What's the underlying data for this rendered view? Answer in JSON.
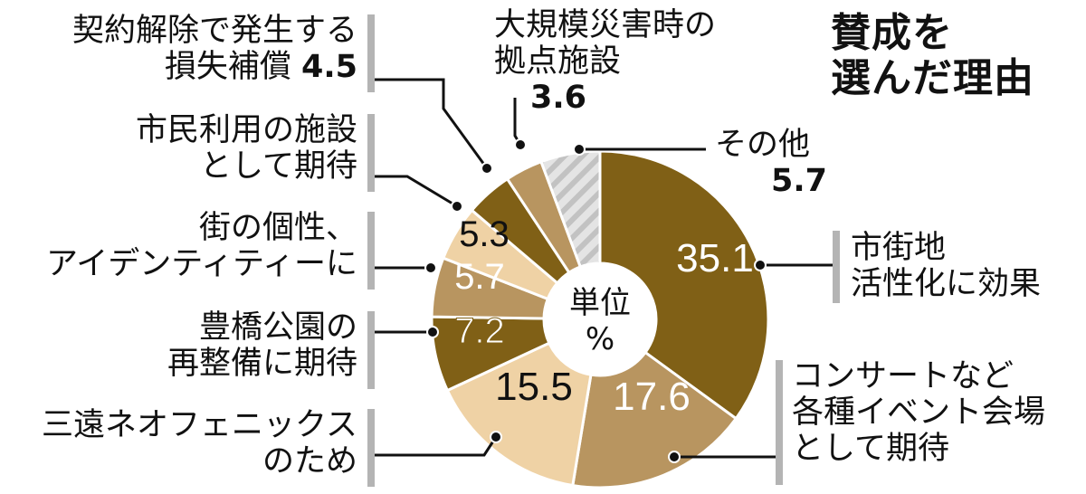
{
  "chart_data": {
    "type": "pie",
    "subtype": "donut",
    "title": "賛成を選んだ理由",
    "unit_label": "単位 %",
    "start_angle": "12 o'clock, clockwise",
    "categories": [
      "市街地活性化に効果",
      "コンサートなど各種イベント会場として期待",
      "三遠ネオフェニックスのため",
      "豊橋公園の再整備に期待",
      "街の個性、アイデンティティーに",
      "市民利用の施設として期待",
      "契約解除で発生する損失補償",
      "大規模災害時の拠点施設",
      "その他"
    ],
    "values": [
      35.1,
      17.6,
      15.5,
      7.2,
      5.7,
      5.3,
      4.5,
      3.6,
      5.7
    ],
    "colors": [
      "#806016",
      "#b89560",
      "#efd2a5",
      "#806016",
      "#b89560",
      "#efd2a5",
      "#806016",
      "#b89560",
      "hatched-gray"
    ]
  },
  "title": {
    "line1": "賛成を",
    "line2": "選んだ理由"
  },
  "center": {
    "line1": "単位",
    "line2": "%"
  },
  "labels": {
    "shigaichi": {
      "line1": "市街地",
      "line2": "活性化に効果"
    },
    "concert": {
      "line1": "コンサートなど",
      "line2": "各種イベント会場",
      "line3": "として期待"
    },
    "neophoenix": {
      "line1": "三遠ネオフェニックス",
      "line2": "のため"
    },
    "park": {
      "line1": "豊橋公園の",
      "line2": "再整備に期待"
    },
    "identity": {
      "line1": "街の個性、",
      "line2": "アイデンティティーに"
    },
    "shimin": {
      "line1": "市民利用の施設",
      "line2": "として期待"
    },
    "keiyaku": {
      "line1": "契約解除で発生する",
      "line2": "損失補償",
      "value": "4.5"
    },
    "saigai": {
      "line1": "大規模災害時の",
      "line2": "拠点施設",
      "value": "3.6"
    },
    "sonota": {
      "line1": "その他",
      "value": "5.7"
    }
  },
  "slice_values": {
    "v351": "35.1",
    "v176": "17.6",
    "v155": "15.5",
    "v72": "7.2",
    "v57": "5.7",
    "v53": "5.3"
  }
}
